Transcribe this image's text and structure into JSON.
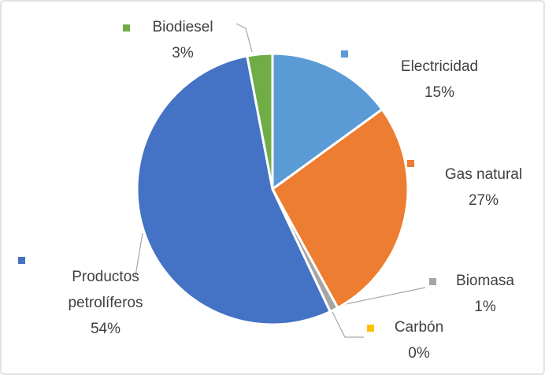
{
  "chart_data": {
    "type": "pie",
    "categories": [
      "Electricidad",
      "Gas natural",
      "Biomasa",
      "Carbón",
      "Productos petrolíferos",
      "Biodiesel"
    ],
    "values": [
      15,
      27,
      1,
      0,
      54,
      3
    ],
    "value_labels": [
      "15%",
      "27%",
      "1%",
      "0%",
      "54%",
      "3%"
    ],
    "colors": [
      "#5b9bd5",
      "#ed7d31",
      "#a5a5a5",
      "#ffc000",
      "#4472c4",
      "#70ad47"
    ]
  }
}
